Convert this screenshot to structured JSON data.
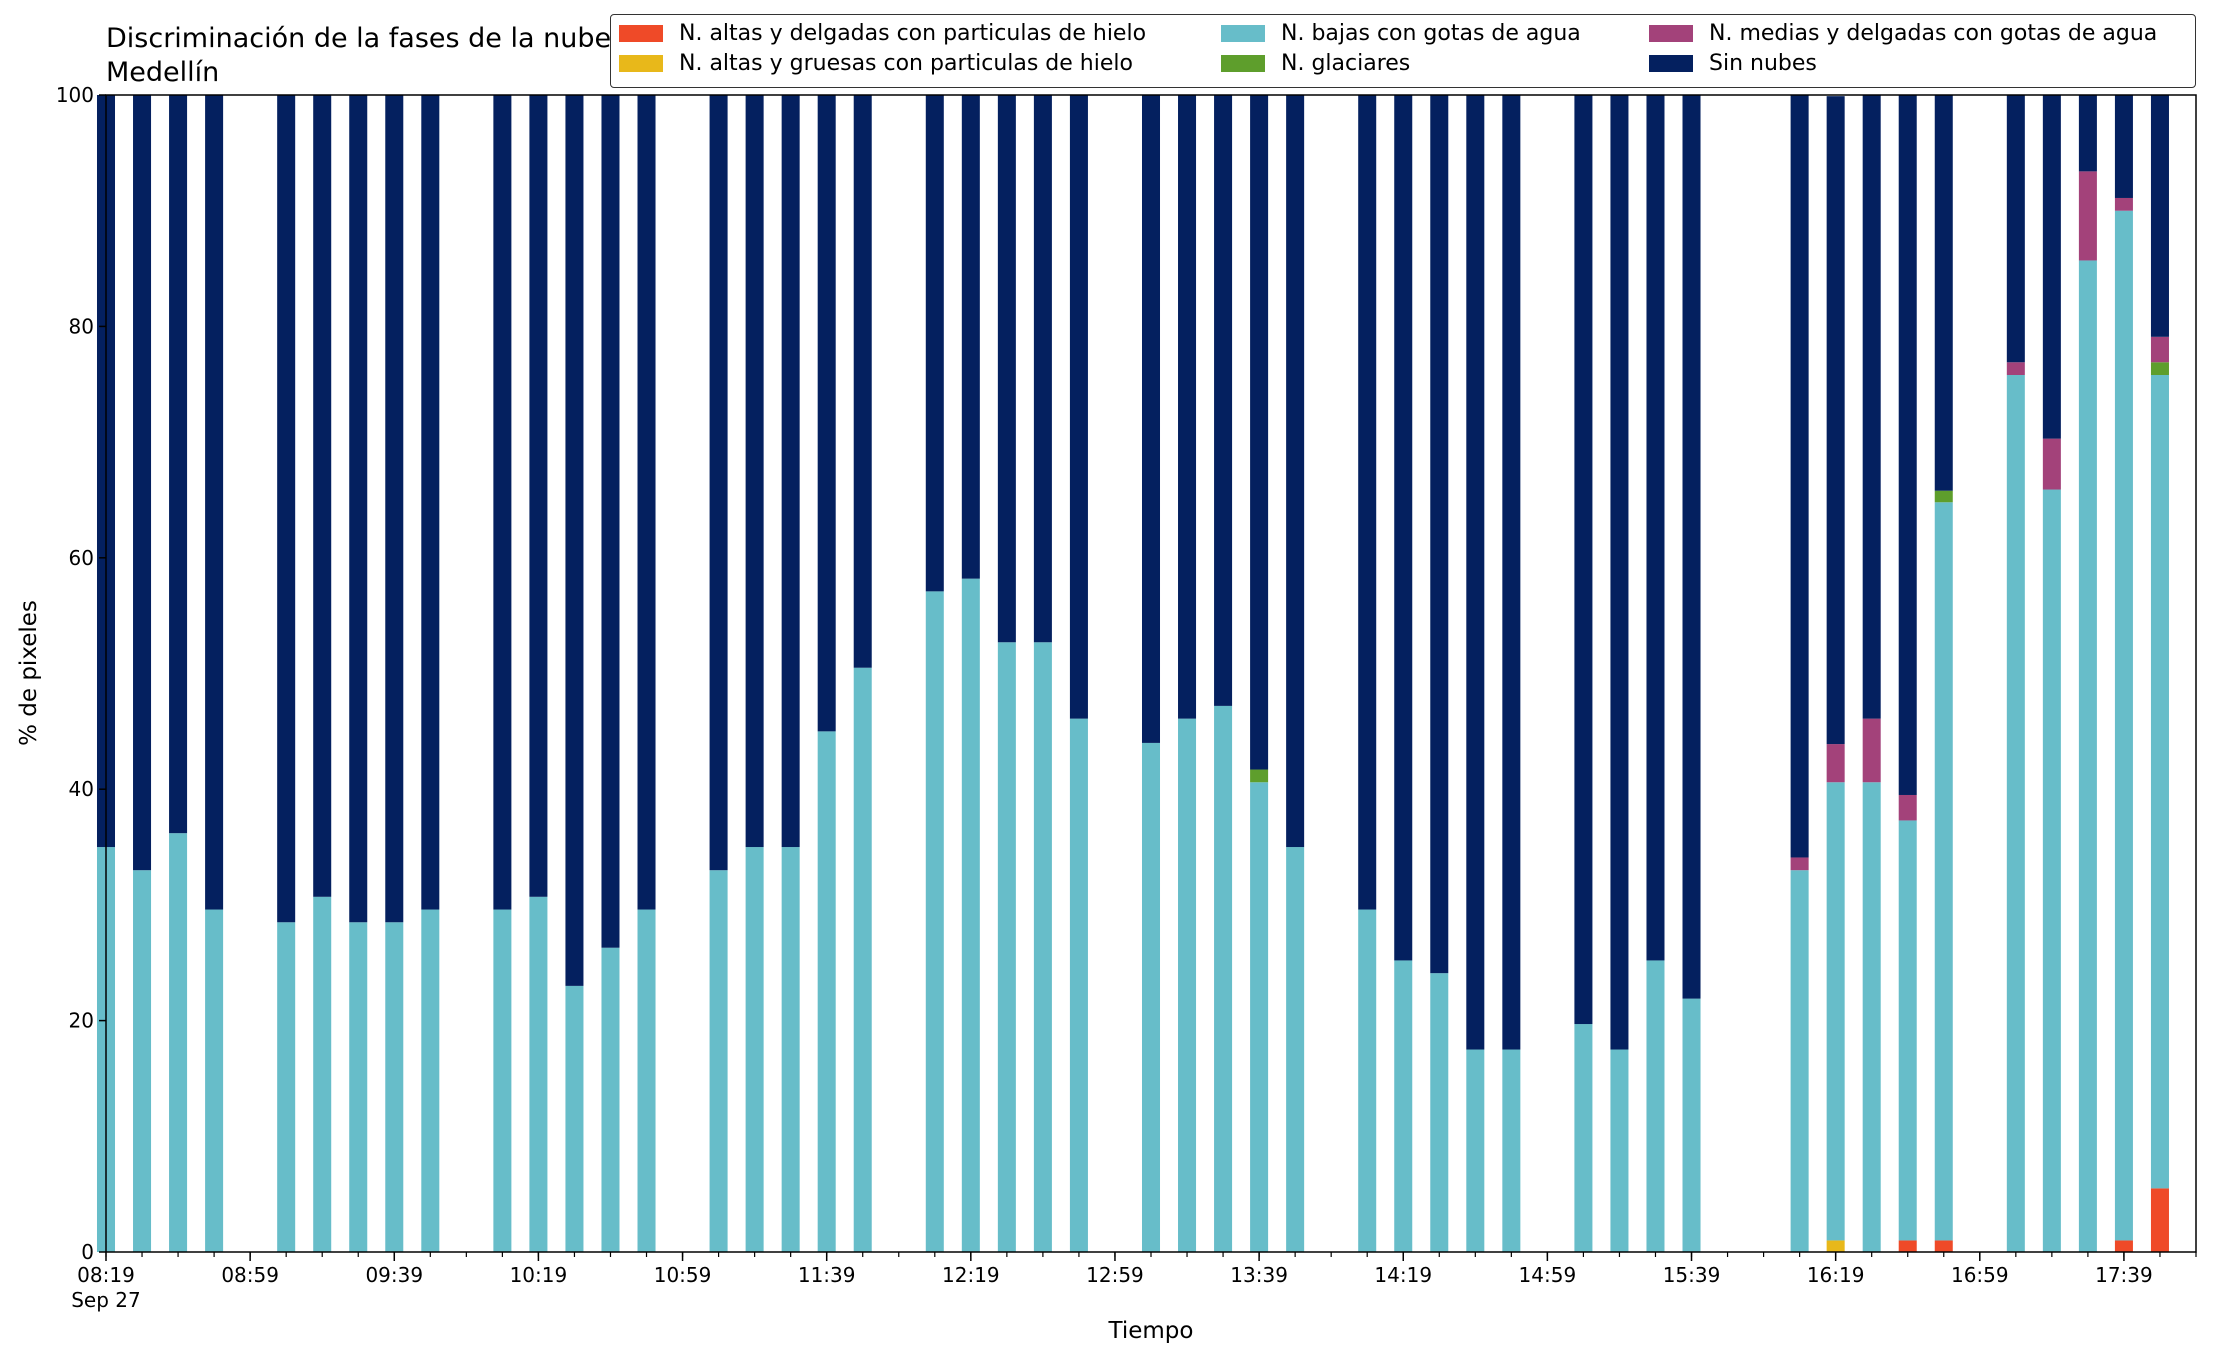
{
  "chart_data": {
    "type": "bar",
    "stacked": true,
    "title": "Discriminación de la fases de la nube en Medellín",
    "xlabel": "Tiempo",
    "ylabel": "% de pixeles",
    "ylim": [
      0,
      100
    ],
    "yticks": [
      0,
      20,
      40,
      60,
      80,
      100
    ],
    "xlim": [
      "08:19",
      "17:59"
    ],
    "xticks": [
      {
        "t": "08:19",
        "label": "08:19",
        "sublabel": "Sep 27"
      },
      {
        "t": "08:59",
        "label": "08:59"
      },
      {
        "t": "09:39",
        "label": "09:39"
      },
      {
        "t": "10:19",
        "label": "10:19"
      },
      {
        "t": "10:59",
        "label": "10:59"
      },
      {
        "t": "11:39",
        "label": "11:39"
      },
      {
        "t": "12:19",
        "label": "12:19"
      },
      {
        "t": "12:59",
        "label": "12:59"
      },
      {
        "t": "13:39",
        "label": "13:39"
      },
      {
        "t": "14:19",
        "label": "14:19"
      },
      {
        "t": "14:59",
        "label": "14:59"
      },
      {
        "t": "15:39",
        "label": "15:39"
      },
      {
        "t": "16:19",
        "label": "16:19"
      },
      {
        "t": "16:59",
        "label": "16:59"
      },
      {
        "t": "17:39",
        "label": "17:39"
      }
    ],
    "minor_tick_minutes": 10,
    "grid": false,
    "legend_position": "top-right",
    "categories": [
      "08:19",
      "08:29",
      "08:39",
      "08:49",
      "09:09",
      "09:19",
      "09:29",
      "09:39",
      "09:49",
      "10:09",
      "10:19",
      "10:29",
      "10:39",
      "10:49",
      "11:09",
      "11:19",
      "11:29",
      "11:39",
      "11:49",
      "12:09",
      "12:19",
      "12:29",
      "12:39",
      "12:49",
      "13:09",
      "13:19",
      "13:29",
      "13:39",
      "13:49",
      "14:09",
      "14:19",
      "14:29",
      "14:39",
      "14:49",
      "15:09",
      "15:19",
      "15:29",
      "15:39",
      "16:09",
      "16:19",
      "16:29",
      "16:39",
      "16:49",
      "17:09",
      "17:19",
      "17:29",
      "17:39",
      "17:49"
    ],
    "series": [
      {
        "name": "N. altas y delgadas con particulas de hielo",
        "color": "#ef4a28",
        "values": [
          0,
          0,
          0,
          0,
          0,
          0,
          0,
          0,
          0,
          0,
          0,
          0,
          0,
          0,
          0,
          0,
          0,
          0,
          0,
          0,
          0,
          0,
          0,
          0,
          0,
          0,
          0,
          0,
          0,
          0,
          0,
          0,
          0,
          0,
          0,
          0,
          0,
          0,
          0,
          0,
          0,
          1,
          1,
          0,
          0,
          0,
          1,
          5.5
        ]
      },
      {
        "name": "N. altas y gruesas con particulas de hielo",
        "color": "#e8b81a",
        "values": [
          0,
          0,
          0,
          0,
          0,
          0,
          0,
          0,
          0,
          0,
          0,
          0,
          0,
          0,
          0,
          0,
          0,
          0,
          0,
          0,
          0,
          0,
          0,
          0,
          0,
          0,
          0,
          0,
          0,
          0,
          0,
          0,
          0,
          0,
          0,
          0,
          0,
          0,
          0,
          1,
          0,
          0,
          0,
          0,
          0,
          0,
          0,
          0
        ]
      },
      {
        "name": "N. bajas con gotas de agua",
        "color": "#67bdc9",
        "values": [
          35,
          33,
          36.2,
          29.6,
          28.5,
          30.7,
          28.5,
          28.5,
          29.6,
          29.6,
          30.7,
          23,
          26.3,
          29.6,
          33,
          35,
          35,
          45,
          50.5,
          57.1,
          58.2,
          52.7,
          52.7,
          46.1,
          44,
          46.1,
          47.2,
          40.6,
          35,
          29.6,
          25.2,
          24.1,
          17.5,
          17.5,
          19.7,
          17.5,
          25.2,
          21.9,
          33,
          39.6,
          40.6,
          36.3,
          63.8,
          75.8,
          65.9,
          85.7,
          89,
          70.3
        ]
      },
      {
        "name": "N. glaciares",
        "color": "#5e9e2c",
        "values": [
          0,
          0,
          0,
          0,
          0,
          0,
          0,
          0,
          0,
          0,
          0,
          0,
          0,
          0,
          0,
          0,
          0,
          0,
          0,
          0,
          0,
          0,
          0,
          0,
          0,
          0,
          0,
          1.1,
          0,
          0,
          0,
          0,
          0,
          0,
          0,
          0,
          0,
          0,
          0,
          0,
          0,
          0,
          1,
          0,
          0,
          0,
          0,
          1.1
        ]
      },
      {
        "name": "N. medias y delgadas con gotas de agua",
        "color": "#a3427a",
        "values": [
          0,
          0,
          0,
          0,
          0,
          0,
          0,
          0,
          0,
          0,
          0,
          0,
          0,
          0,
          0,
          0,
          0,
          0,
          0,
          0,
          0,
          0,
          0,
          0,
          0,
          0,
          0,
          0,
          0,
          0,
          0,
          0,
          0,
          0,
          0,
          0,
          0,
          0,
          1.1,
          3.3,
          5.5,
          2.2,
          0,
          1.1,
          4.4,
          7.7,
          1.1,
          2.2
        ]
      },
      {
        "name": "Sin nubes",
        "color": "#04205f",
        "values": [
          65,
          67,
          63.8,
          70.4,
          71.5,
          69.3,
          71.5,
          71.5,
          70.4,
          70.4,
          69.3,
          77,
          73.7,
          70.4,
          67,
          65,
          65,
          55,
          49.5,
          42.9,
          41.8,
          47.3,
          47.3,
          53.9,
          56,
          53.9,
          52.8,
          58.3,
          65,
          70.4,
          74.8,
          75.9,
          82.5,
          82.5,
          80.3,
          82.5,
          74.8,
          78.1,
          65.9,
          56,
          53.9,
          60.5,
          34.2,
          23.1,
          29.7,
          6.6,
          8.9,
          20.9
        ]
      }
    ]
  }
}
